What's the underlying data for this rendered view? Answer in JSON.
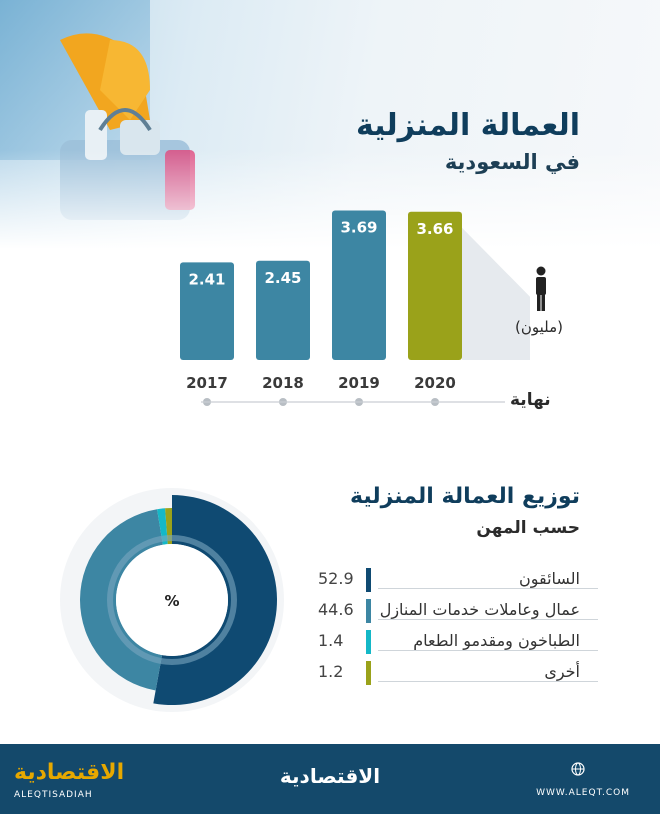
{
  "header": {
    "title": "العمالة المنزلية",
    "subtitle": "في السعودية"
  },
  "bar_section": {
    "unit_label": "(مليون)",
    "axis_caption": "نهاية"
  },
  "donut_section": {
    "title": "توزيع العمالة المنزلية",
    "subtitle": "حسب المهن",
    "center_label": "%"
  },
  "colors": {
    "bar": "#3d86a3",
    "highlight": "#9aa21a",
    "driver": "#0f4a72",
    "house": "#3d86a3",
    "cook": "#14b8c7",
    "other": "#9aa21a",
    "ring": "#e9ecef"
  },
  "chart_data": [
    {
      "type": "bar",
      "categories": [
        "2017",
        "2018",
        "2019",
        "2020"
      ],
      "values": [
        2.41,
        2.45,
        3.69,
        3.66
      ],
      "title": "العمالة المنزلية",
      "ylabel": "(مليون)",
      "xlabel": "نهاية",
      "ylim": [
        0,
        4
      ],
      "grid": false
    },
    {
      "type": "pie",
      "title": "توزيع العمالة المنزلية",
      "categories": [
        "السائقون",
        "عمال وعاملات خدمات المنازل",
        "الطباخون ومقدمو الطعام",
        "أخرى"
      ],
      "values": [
        52.9,
        44.6,
        1.4,
        1.2
      ],
      "legend": "right"
    }
  ],
  "footer": {
    "logo_ar": "الاقتصادية",
    "logo_en": "ALEQTISADIAH",
    "center_logo": "الاقتصادية",
    "url": "WWW.ALEQT.COM",
    "icon": "globe-icon"
  }
}
